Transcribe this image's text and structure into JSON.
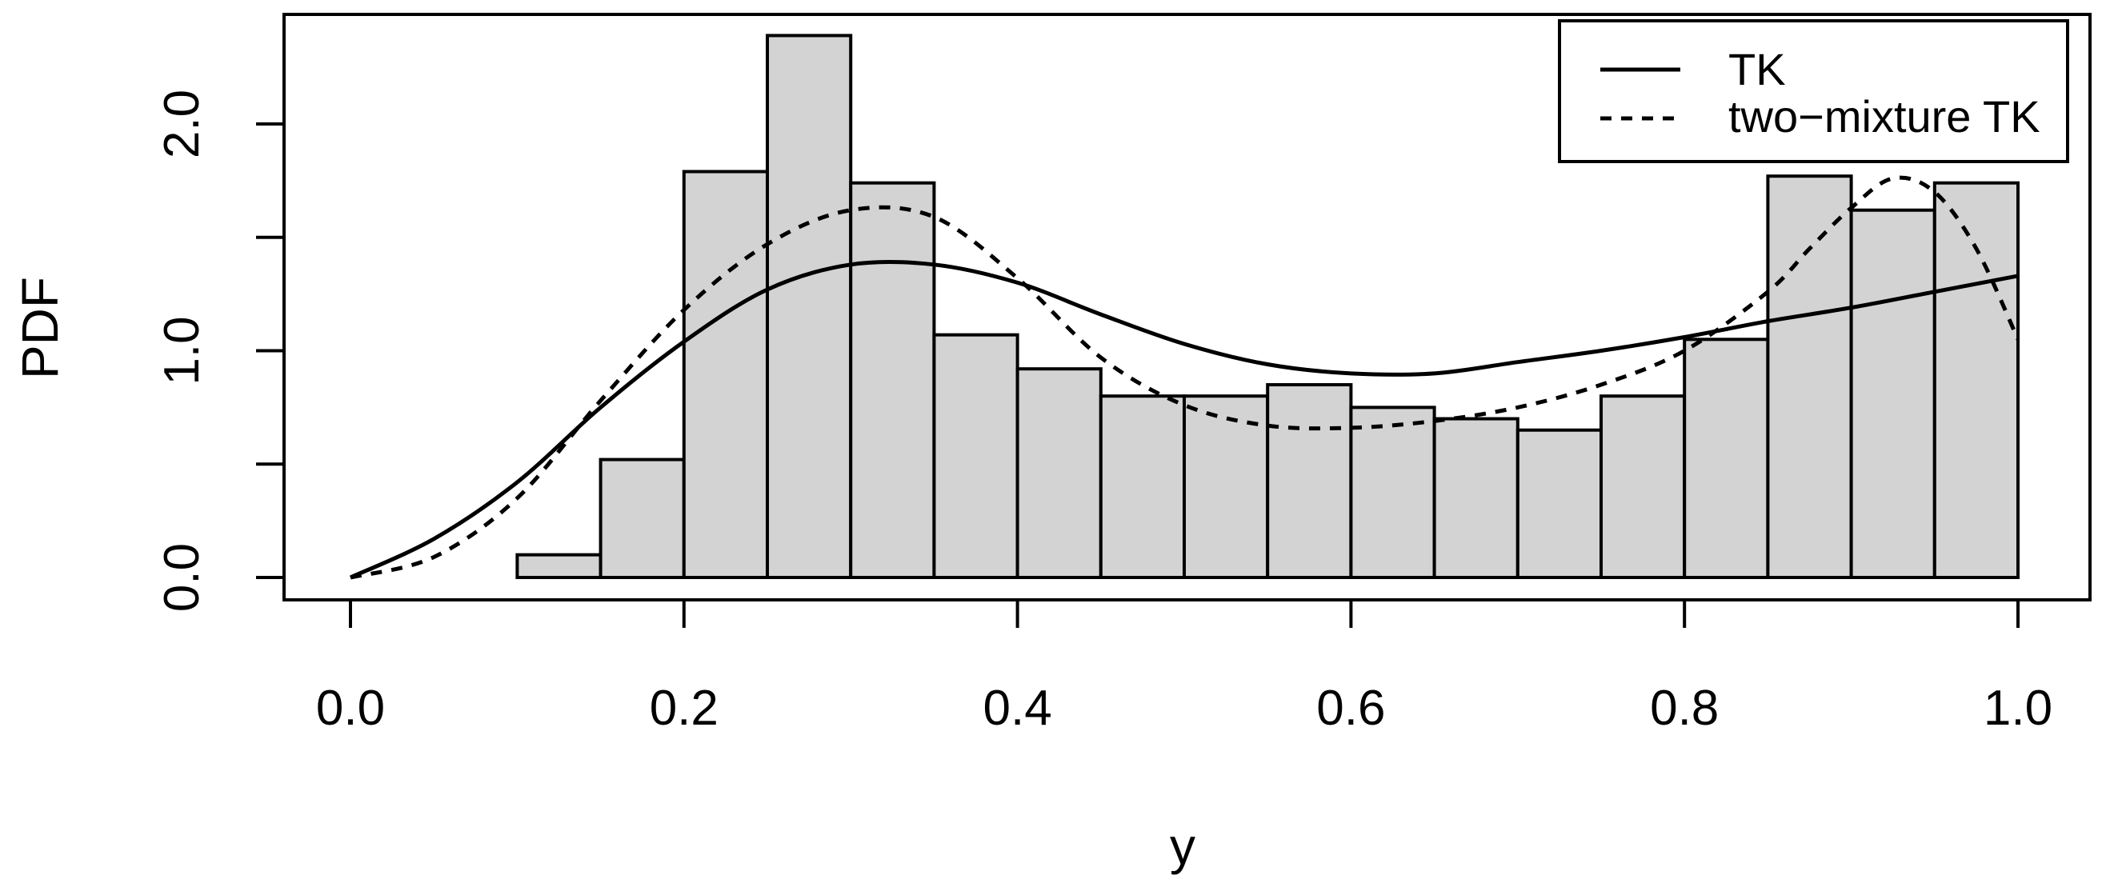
{
  "chart_data": {
    "type": "histogram",
    "xlabel": "y",
    "ylabel": "PDF",
    "xlim": [
      0.0,
      1.0
    ],
    "ylim": [
      0.0,
      2.4
    ],
    "x_ticks": [
      "0.0",
      "0.2",
      "0.4",
      "0.6",
      "0.8",
      "1.0"
    ],
    "y_ticks": [
      "0.0",
      "1.0",
      "2.0"
    ],
    "y_tick_values": [
      0.0,
      0.5,
      1.0,
      1.5,
      2.0
    ],
    "bin_edges": [
      0.1,
      0.15,
      0.2,
      0.25,
      0.3,
      0.35,
      0.4,
      0.45,
      0.5,
      0.55,
      0.6,
      0.65,
      0.7,
      0.75,
      0.8,
      0.85,
      0.9,
      0.95,
      1.0
    ],
    "values": [
      0.1,
      0.52,
      1.79,
      2.39,
      1.74,
      1.07,
      0.92,
      0.8,
      0.8,
      0.85,
      0.75,
      0.7,
      0.65,
      0.8,
      1.05,
      1.77,
      1.62,
      1.74
    ],
    "bar_color": "#d3d3d3",
    "grid": false,
    "legend_position": "top-right",
    "series": [
      {
        "name": "TK",
        "line_style": "solid",
        "x": [
          0.0,
          0.05,
          0.1,
          0.15,
          0.2,
          0.25,
          0.3,
          0.35,
          0.4,
          0.45,
          0.5,
          0.55,
          0.6,
          0.65,
          0.7,
          0.75,
          0.8,
          0.85,
          0.9,
          0.95,
          1.0
        ],
        "y": [
          0.0,
          0.17,
          0.42,
          0.75,
          1.04,
          1.27,
          1.38,
          1.38,
          1.3,
          1.16,
          1.03,
          0.94,
          0.9,
          0.9,
          0.95,
          1.0,
          1.06,
          1.13,
          1.19,
          1.26,
          1.33
        ]
      },
      {
        "name": "two−mixture TK",
        "line_style": "dashed",
        "x": [
          0.0,
          0.05,
          0.1,
          0.15,
          0.2,
          0.25,
          0.3,
          0.35,
          0.4,
          0.45,
          0.5,
          0.55,
          0.6,
          0.65,
          0.7,
          0.75,
          0.8,
          0.85,
          0.875,
          0.9,
          0.925,
          0.95,
          0.975,
          1.0
        ],
        "y": [
          0.0,
          0.09,
          0.35,
          0.78,
          1.18,
          1.47,
          1.62,
          1.59,
          1.32,
          0.97,
          0.76,
          0.67,
          0.66,
          0.69,
          0.75,
          0.85,
          1.0,
          1.26,
          1.45,
          1.63,
          1.76,
          1.7,
          1.45,
          1.05
        ]
      }
    ]
  }
}
